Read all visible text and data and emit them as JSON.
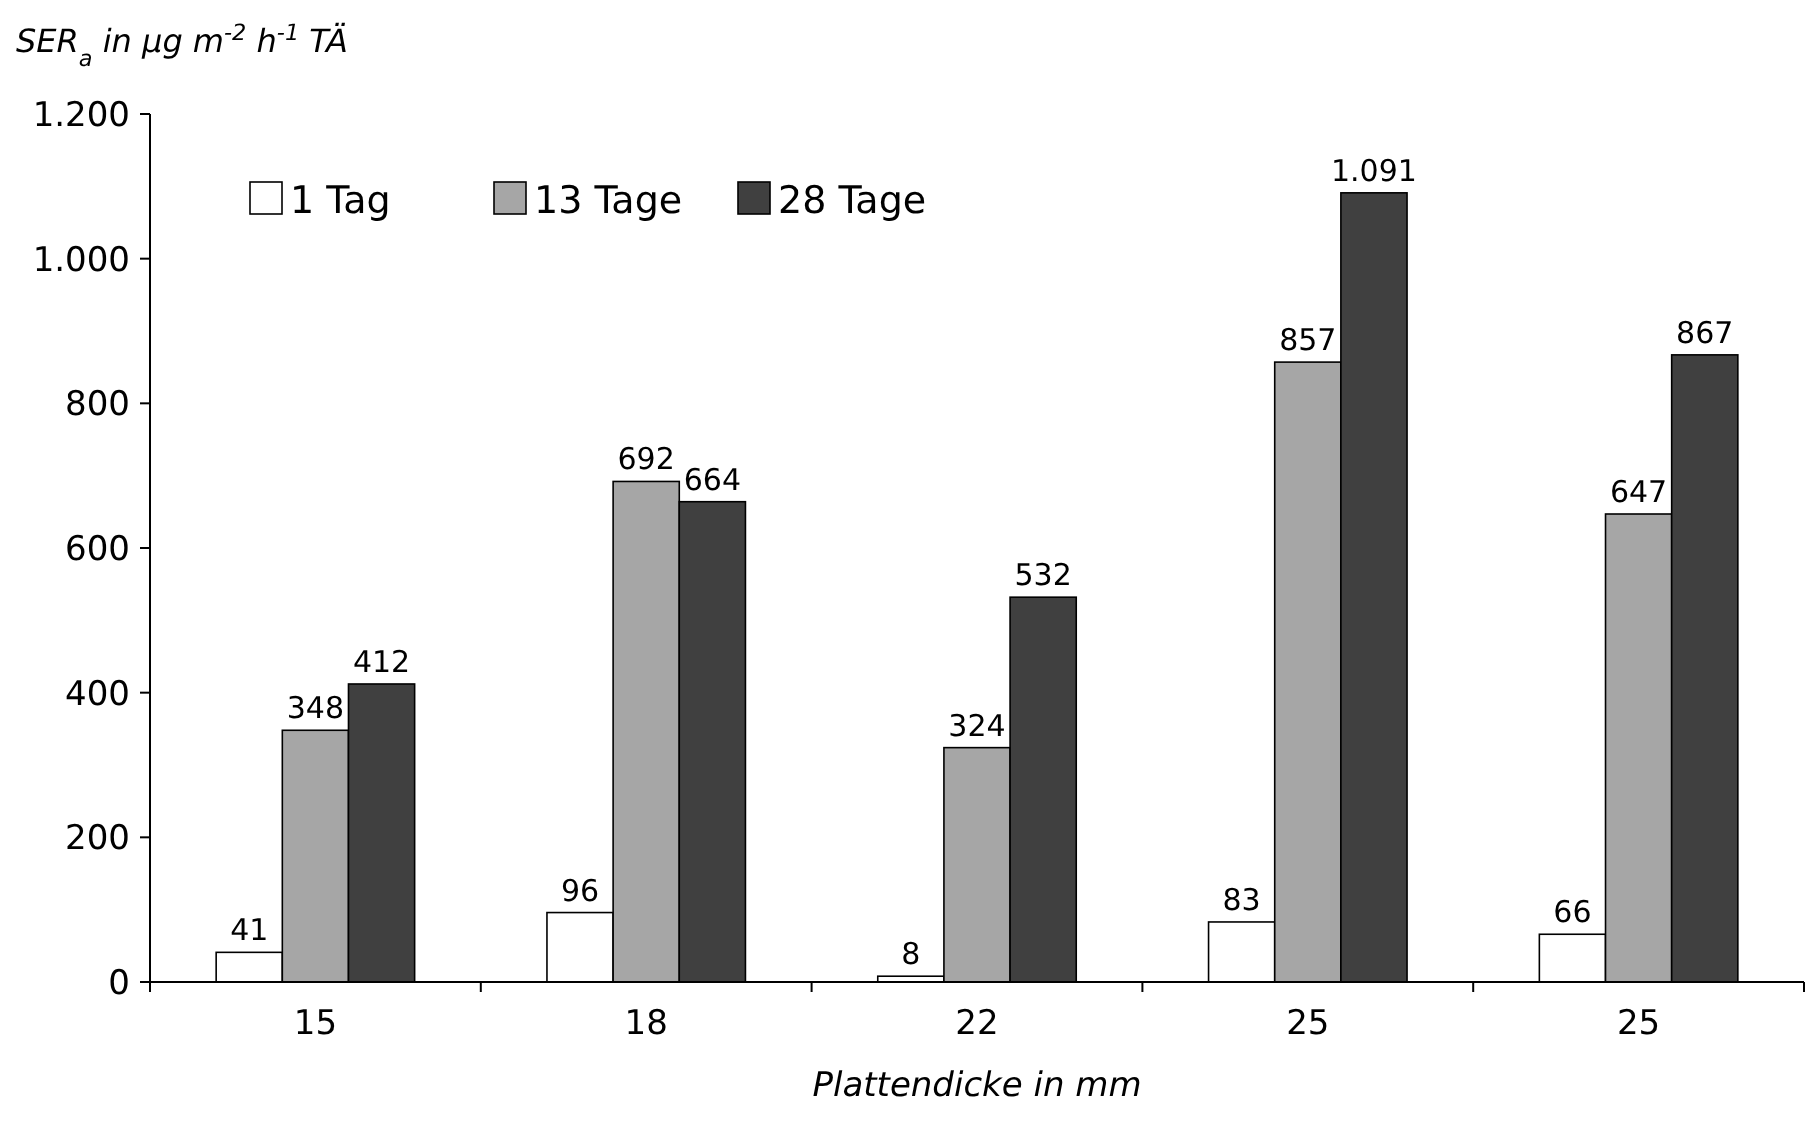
{
  "chart_data": {
    "type": "bar",
    "ylabel": "SER$_{a}$ in µg m$^{-2}$ h$^{-1}$ TÄ",
    "xlabel": "Plattendicke in mm",
    "categories": [
      "15",
      "18",
      "22",
      "25",
      "25"
    ],
    "series": [
      {
        "name": "1 Tag",
        "color": "#ffffff",
        "values": [
          41,
          96,
          8,
          83,
          66
        ],
        "value_labels": [
          "41",
          "96",
          "8",
          "83",
          "66"
        ]
      },
      {
        "name": "13 Tage",
        "color": "#a6a6a6",
        "values": [
          348,
          692,
          324,
          857,
          647
        ],
        "value_labels": [
          "348",
          "692",
          "324",
          "857",
          "647"
        ]
      },
      {
        "name": "28 Tage",
        "color": "#404040",
        "values": [
          412,
          664,
          532,
          1091,
          867
        ],
        "value_labels": [
          "412",
          "664",
          "532",
          "1.091",
          "867"
        ]
      }
    ],
    "ylim": [
      0,
      1200
    ],
    "yticks": [
      0,
      200,
      400,
      600,
      800,
      {
        "value": 1000,
        "label": "1.000"
      },
      {
        "value": 1200,
        "label": "1.200"
      }
    ],
    "legend": "top left",
    "grid": false
  }
}
